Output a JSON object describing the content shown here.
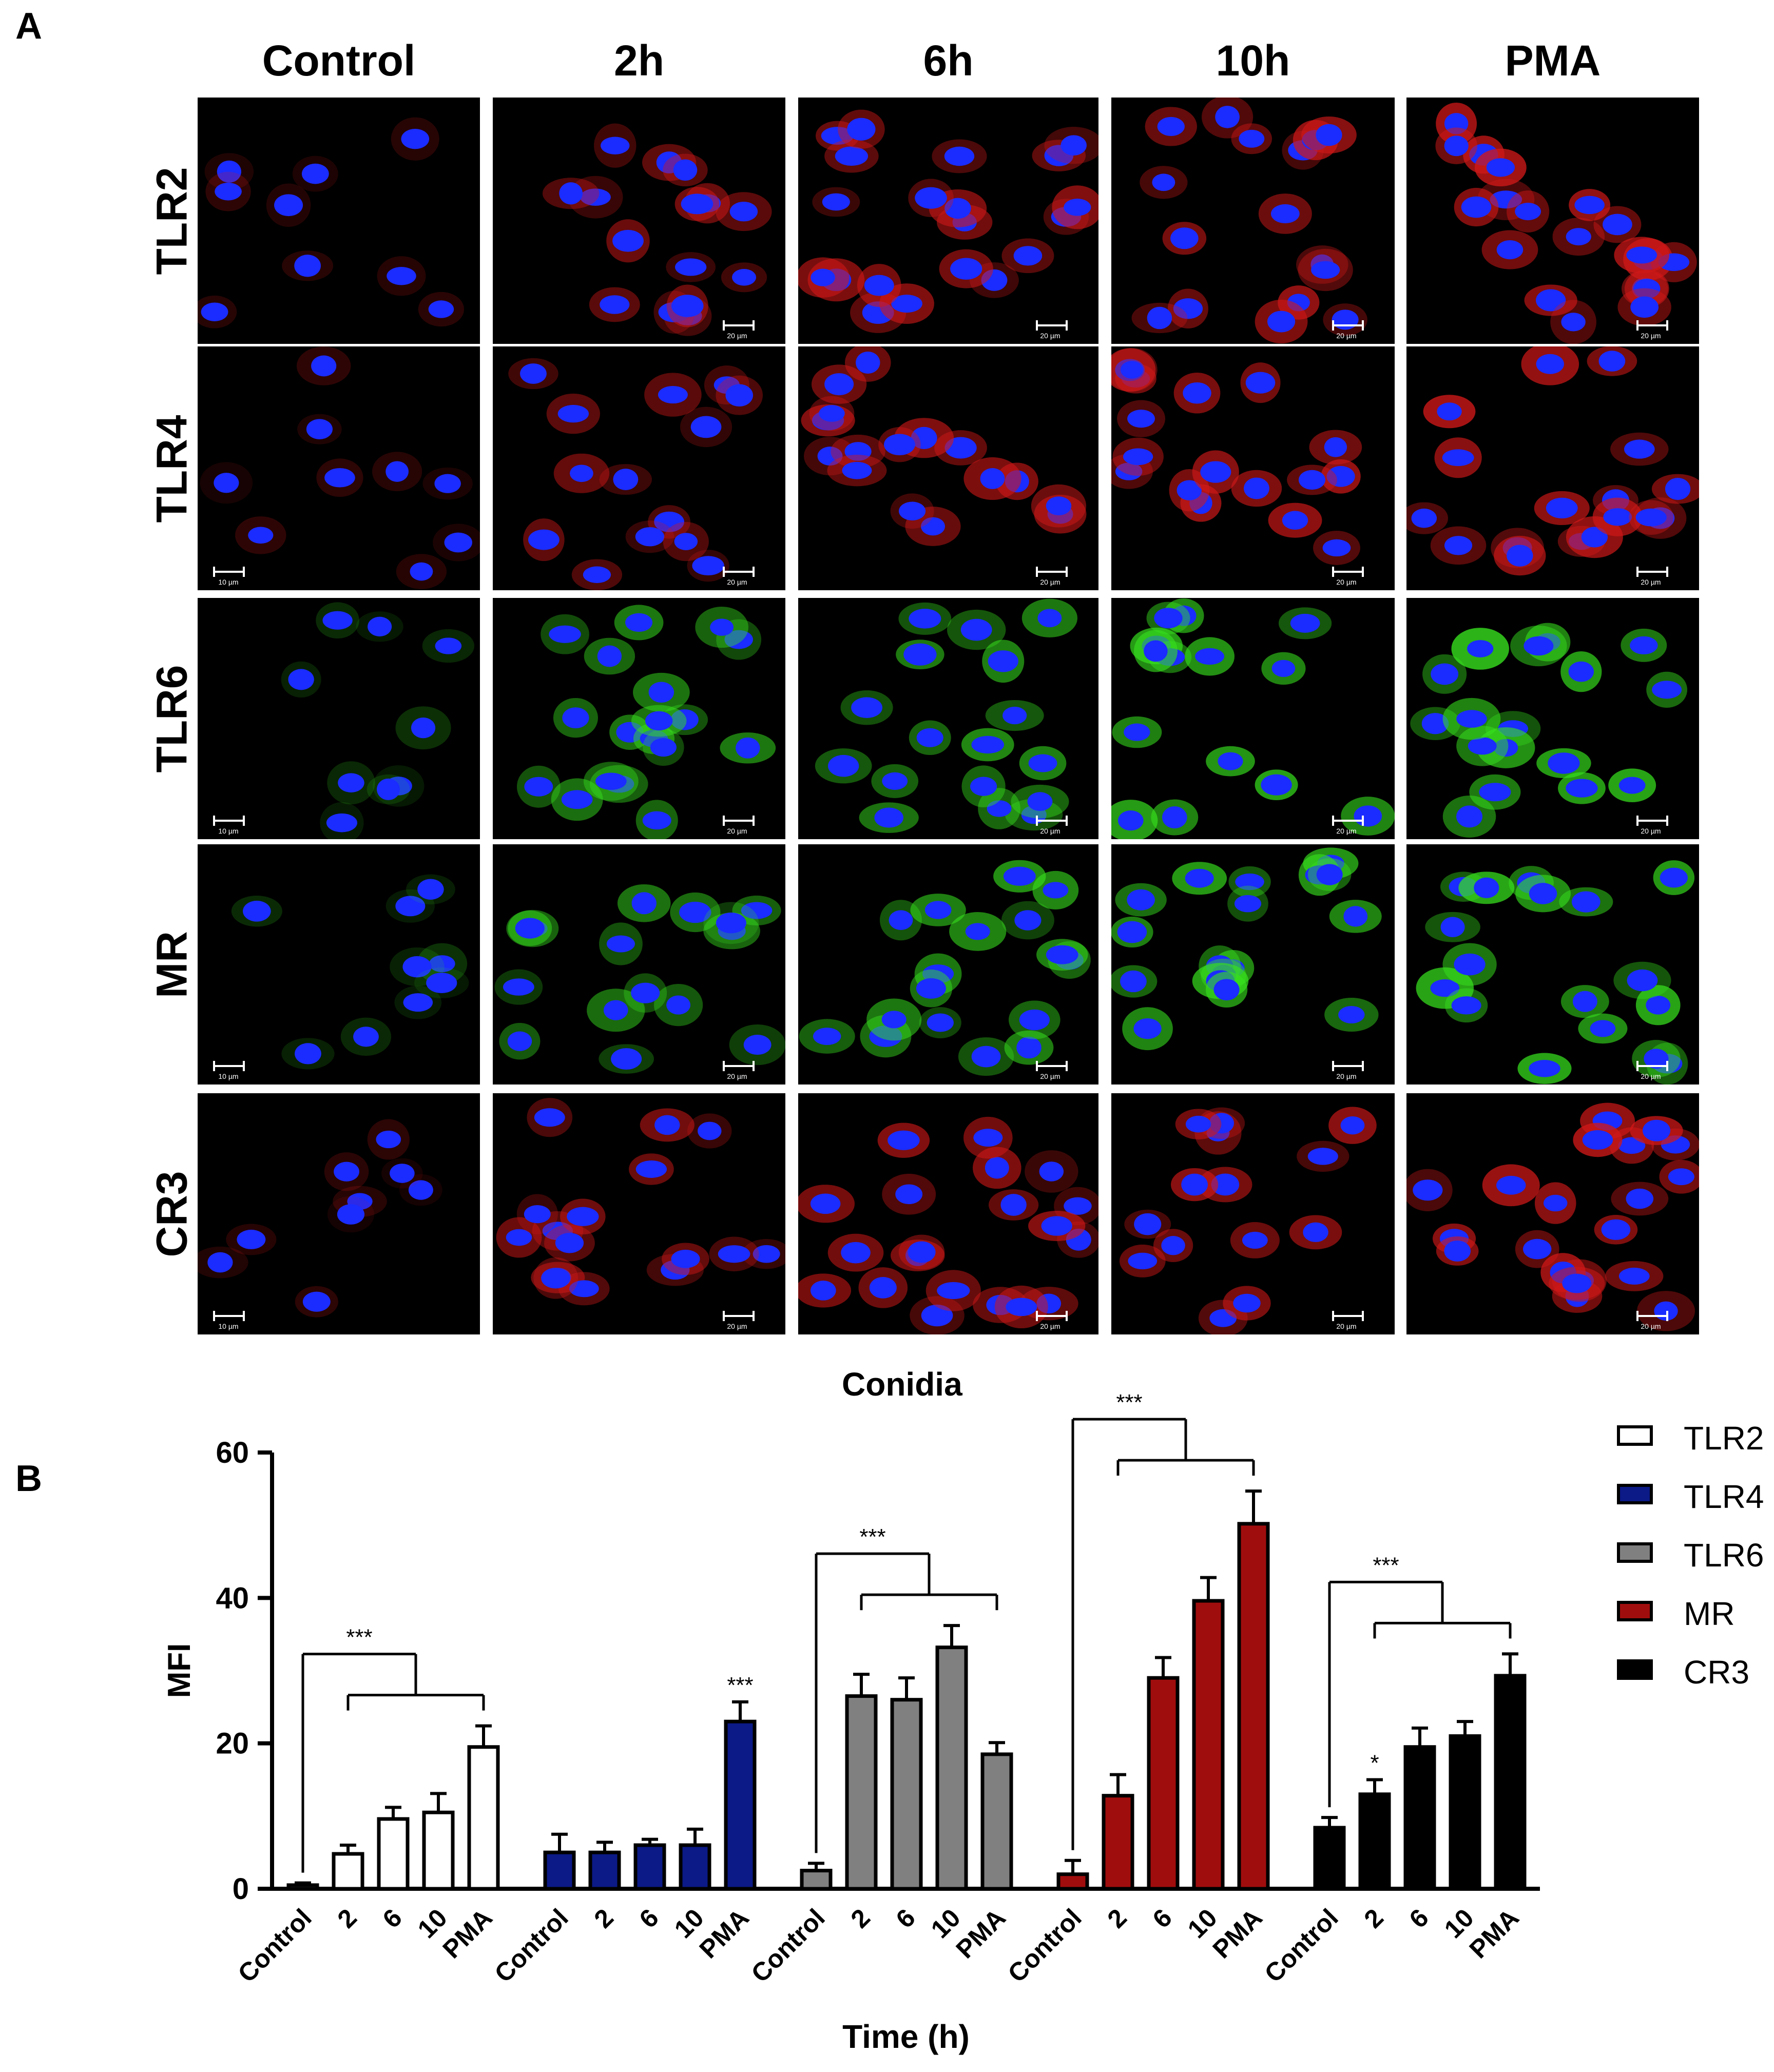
{
  "panel_a": {
    "label": "A",
    "columns": [
      "Control",
      "2h",
      "6h",
      "10h",
      "PMA"
    ],
    "rows": [
      "TLR2",
      "TLR4",
      "TLR6",
      "MR",
      "CR3"
    ],
    "scale_labels": [
      [
        "",
        "20 µm",
        "20 µm",
        "20 µm",
        "20 µm"
      ],
      [
        "10 µm",
        "20 µm",
        "20 µm",
        "20 µm",
        "20 µm"
      ],
      [
        "10 µm",
        "20 µm",
        "20 µm",
        "20 µm",
        "20 µm"
      ],
      [
        "10 µm",
        "20 µm",
        "20 µm",
        "20 µm",
        "20 µm"
      ],
      [
        "10 µm",
        "20 µm",
        "20 µm",
        "20 µm",
        "20 µm"
      ]
    ],
    "stain_colors": {
      "TLR2": "#d01818",
      "TLR4": "#d01818",
      "TLR6": "#37e01e",
      "MR": "#37e01e",
      "CR3": "#d01818"
    },
    "nucleus_color": "#1a2cff"
  },
  "panel_b": {
    "label": "B",
    "chart_data": {
      "type": "bar",
      "title": "Conidia",
      "xlabel": "Time (h)",
      "ylabel": "MFI",
      "ylim": [
        0,
        60
      ],
      "yticks": [
        0,
        20,
        40,
        60
      ],
      "categories": [
        "Control",
        "2",
        "6",
        "10",
        "PMA"
      ],
      "series": [
        {
          "name": "TLR2",
          "color": "#ffffff",
          "values": [
            0.5,
            4.8,
            9.6,
            10.5,
            19.5
          ],
          "errors": [
            0.3,
            1.2,
            1.6,
            2.6,
            2.9
          ],
          "stars": [
            "",
            "",
            "",
            "",
            ""
          ]
        },
        {
          "name": "TLR4",
          "color": "#0b1a86",
          "values": [
            5.0,
            5.0,
            6.0,
            6.0,
            23.0
          ],
          "errors": [
            2.5,
            1.4,
            0.8,
            2.2,
            2.7
          ],
          "stars": [
            "",
            "",
            "",
            "",
            "***"
          ]
        },
        {
          "name": "TLR6",
          "color": "#808080",
          "values": [
            2.5,
            26.5,
            26.0,
            33.2,
            18.5
          ],
          "errors": [
            1.0,
            3.0,
            3.0,
            3.0,
            1.6
          ],
          "stars": [
            "",
            "",
            "",
            "",
            ""
          ]
        },
        {
          "name": "MR",
          "color": "#a00d0d",
          "values": [
            2.0,
            12.8,
            29.0,
            39.6,
            50.2
          ],
          "errors": [
            1.9,
            2.9,
            2.8,
            3.2,
            4.5
          ],
          "stars": [
            "",
            "",
            "",
            "",
            ""
          ]
        },
        {
          "name": "CR3",
          "color": "#000000",
          "values": [
            8.4,
            13.0,
            19.5,
            21.0,
            29.3
          ],
          "errors": [
            1.4,
            2.0,
            2.6,
            2.0,
            3.0
          ],
          "stars": [
            "",
            "*",
            "",
            "",
            ""
          ]
        }
      ],
      "brackets": [
        {
          "series": 0,
          "label": "***"
        },
        {
          "series": 2,
          "label": "***"
        },
        {
          "series": 3,
          "label": "***"
        },
        {
          "series": 4,
          "label": "***"
        }
      ],
      "legend_placement": "right"
    }
  }
}
